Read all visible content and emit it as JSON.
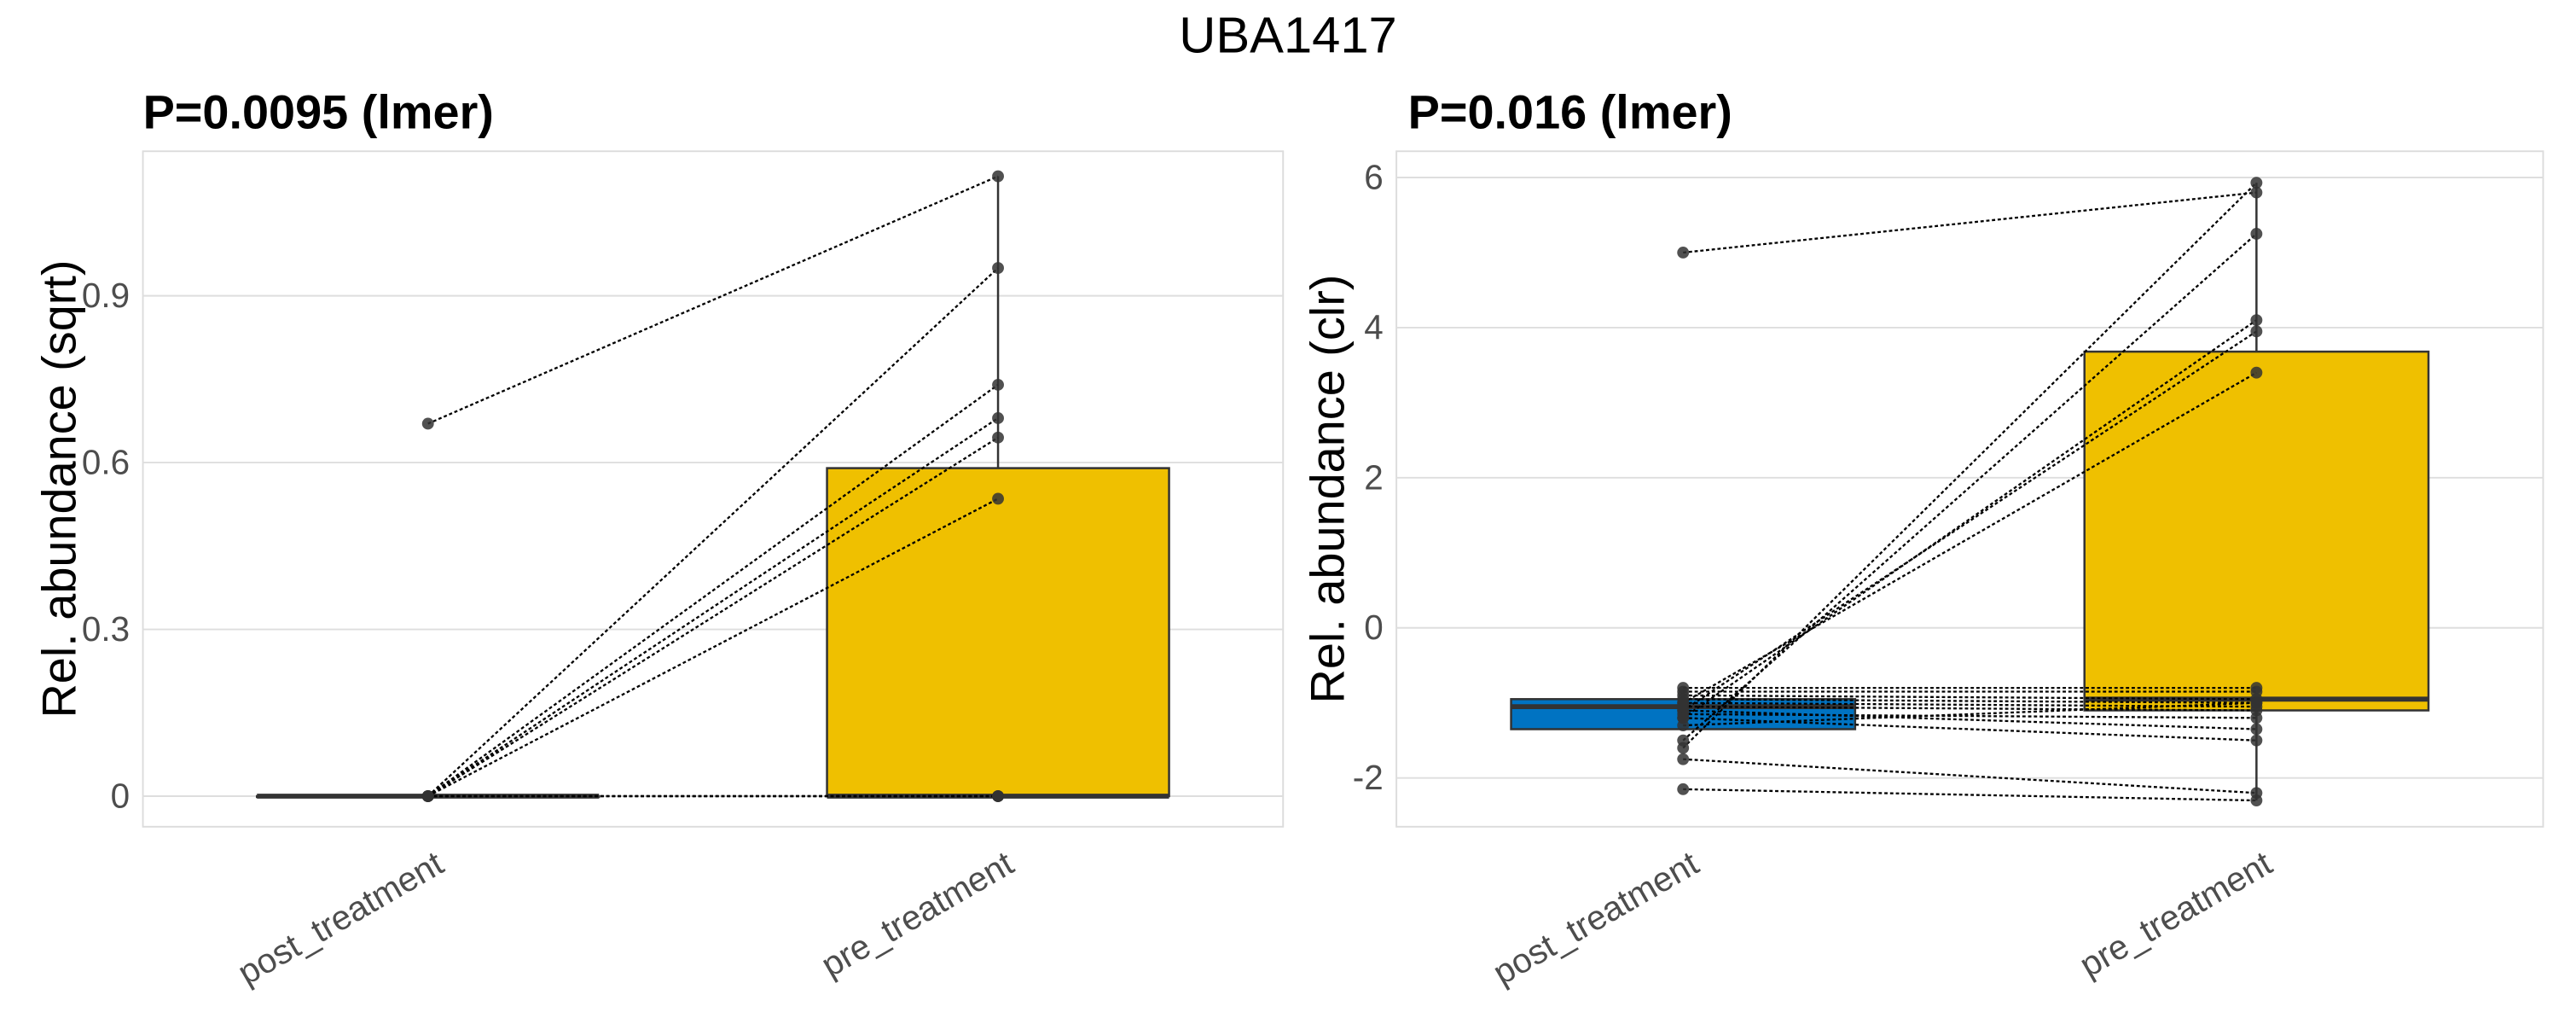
{
  "title": "UBA1417",
  "colors": {
    "post_treatment": "#0073C2",
    "pre_treatment": "#EFC000",
    "grid": "#dedede",
    "point": "#333333"
  },
  "chart_data": [
    {
      "type": "box",
      "subtitle": "P=0.0095 (lmer)",
      "ylabel": "Rel. abundance (sqrt)",
      "xlabel": "",
      "categories": [
        "post_treatment",
        "pre_treatment"
      ],
      "ylim": [
        -0.055,
        1.16
      ],
      "yticks": [
        0,
        0.3,
        0.6,
        0.9
      ],
      "ytick_labels": [
        "0",
        "0.3",
        "0.6",
        "0.9"
      ],
      "boxes": [
        {
          "group": "post_treatment",
          "q1": 0,
          "median": 0,
          "q3": 0,
          "lower": 0,
          "upper": 0
        },
        {
          "group": "pre_treatment",
          "q1": 0,
          "median": 0,
          "q3": 0.59,
          "lower": 0,
          "upper": 1.115
        }
      ],
      "pairs": [
        [
          0.67,
          1.115
        ],
        [
          0,
          0.95
        ],
        [
          0,
          0.74
        ],
        [
          0,
          0.68
        ],
        [
          0,
          0.645
        ],
        [
          0,
          0.535
        ],
        [
          0,
          0
        ],
        [
          0,
          0
        ],
        [
          0,
          0
        ],
        [
          0,
          0
        ]
      ]
    },
    {
      "type": "box",
      "subtitle": "P=0.016 (lmer)",
      "ylabel": "Rel. abundance (clr)",
      "xlabel": "",
      "categories": [
        "post_treatment",
        "pre_treatment"
      ],
      "ylim": [
        -2.65,
        6.35
      ],
      "yticks": [
        -2,
        0,
        2,
        4,
        6
      ],
      "ytick_labels": [
        "-2",
        "0",
        "2",
        "4",
        "6"
      ],
      "boxes": [
        {
          "group": "post_treatment",
          "q1": -1.35,
          "median": -1.05,
          "q3": -0.95,
          "lower": -1.35,
          "upper": -0.95
        },
        {
          "group": "pre_treatment",
          "q1": -1.1,
          "median": -0.95,
          "q3": 3.68,
          "lower": -2.3,
          "upper": 5.93
        }
      ],
      "pairs": [
        [
          5.0,
          5.8
        ],
        [
          -1.6,
          5.93
        ],
        [
          -1.5,
          5.25
        ],
        [
          -1.2,
          4.1
        ],
        [
          -1.1,
          3.95
        ],
        [
          -1.0,
          3.4
        ],
        [
          -0.8,
          -0.8
        ],
        [
          -0.85,
          -0.85
        ],
        [
          -0.9,
          -0.95
        ],
        [
          -0.95,
          -1.0
        ],
        [
          -1.0,
          -1.05
        ],
        [
          -1.05,
          -1.1
        ],
        [
          -1.15,
          -1.2
        ],
        [
          -1.1,
          -1.35
        ],
        [
          -1.2,
          -1.5
        ],
        [
          -1.3,
          -1.0
        ],
        [
          -1.75,
          -2.2
        ],
        [
          -2.15,
          -2.3
        ]
      ]
    }
  ]
}
